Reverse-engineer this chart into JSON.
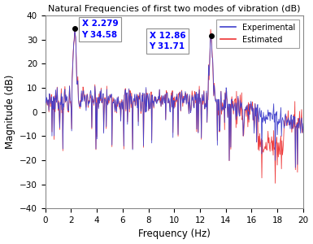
{
  "title": "Natural Frequencies of first two modes of vibration (dB)",
  "xlabel": "Frequency (Hz)",
  "ylabel": "Magnitude (dB)",
  "xlim": [
    0,
    20
  ],
  "ylim": [
    -40,
    40
  ],
  "xticks": [
    0,
    2,
    4,
    6,
    8,
    10,
    12,
    14,
    16,
    18,
    20
  ],
  "yticks": [
    -40,
    -30,
    -20,
    -10,
    0,
    10,
    20,
    30,
    40
  ],
  "peak1_x": 2.279,
  "peak1_y": 34.58,
  "peak2_x": 12.86,
  "peak2_y": 31.71,
  "exp_color": "#4040CC",
  "est_color": "#EE3333",
  "annotation_color": "#0000FF",
  "bg_color": "#FFFFFF",
  "legend_labels": [
    "Experimental",
    "Estimated"
  ],
  "n_points": 500
}
